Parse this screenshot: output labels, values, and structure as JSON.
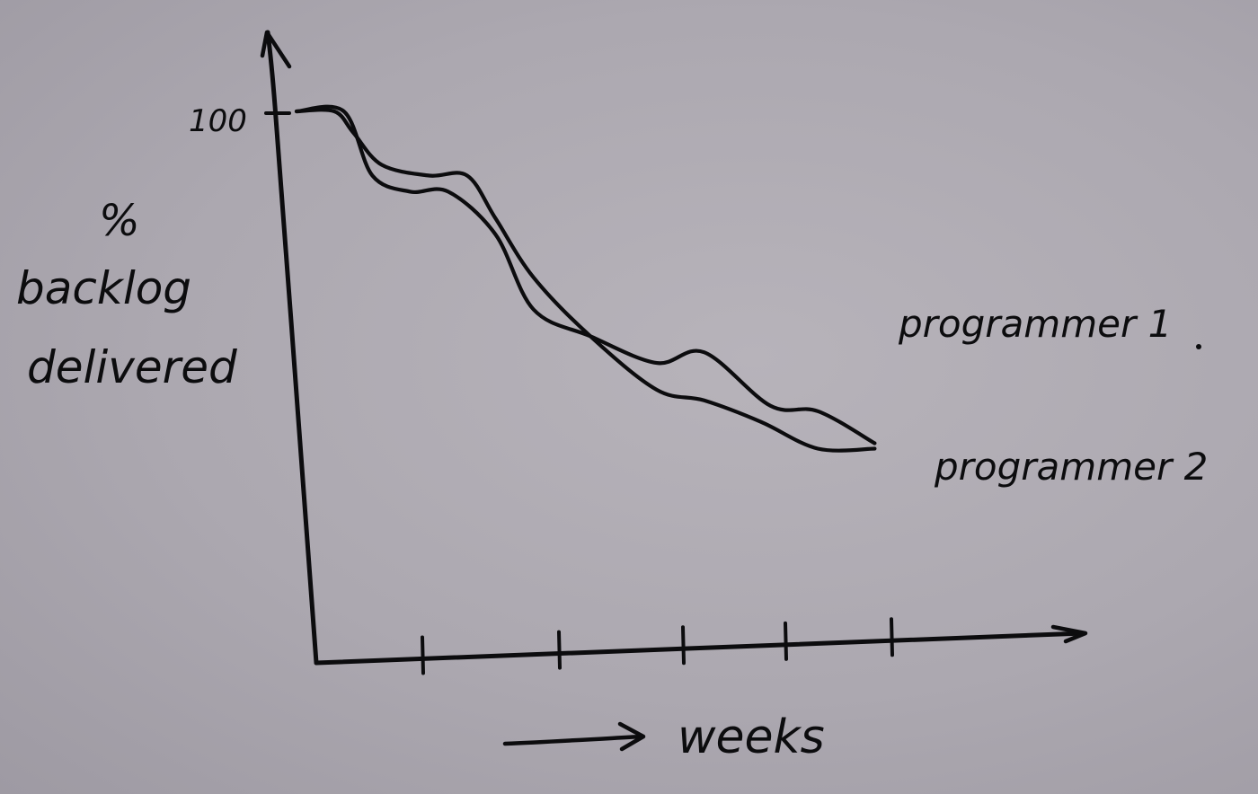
{
  "chart_data": {
    "type": "line",
    "title": "",
    "ylabel": [
      "%",
      "backlog",
      "delivered"
    ],
    "xlabel": "weeks",
    "ytick_label": "100",
    "ylim": [
      0,
      100
    ],
    "xlim": [
      0,
      7.3
    ],
    "x_ticks": [
      1,
      2,
      3,
      4,
      5
    ],
    "grid": false,
    "series": [
      {
        "name": "programmer 1",
        "x": [
          0,
          0.5,
          0.8,
          1.2,
          1.6,
          2.1,
          2.5,
          3.1,
          3.8,
          4.3,
          5.0,
          5.5,
          6.1
        ],
        "values": [
          100,
          100,
          88,
          85,
          85,
          77,
          63,
          58,
          53,
          55,
          45,
          44,
          38
        ]
      },
      {
        "name": "programmer 2",
        "x": [
          0,
          0.4,
          0.6,
          0.9,
          1.4,
          1.8,
          2.1,
          2.5,
          3.1,
          3.8,
          4.3,
          4.9,
          5.5,
          6.1
        ],
        "values": [
          100,
          100,
          96,
          90,
          88,
          88,
          80,
          69,
          58,
          48,
          46,
          42,
          37,
          37
        ]
      }
    ],
    "annotations": {
      "series_1_label": "programmer 1",
      "series_2_label": "programmer 2",
      "x_arrow": "→"
    }
  }
}
